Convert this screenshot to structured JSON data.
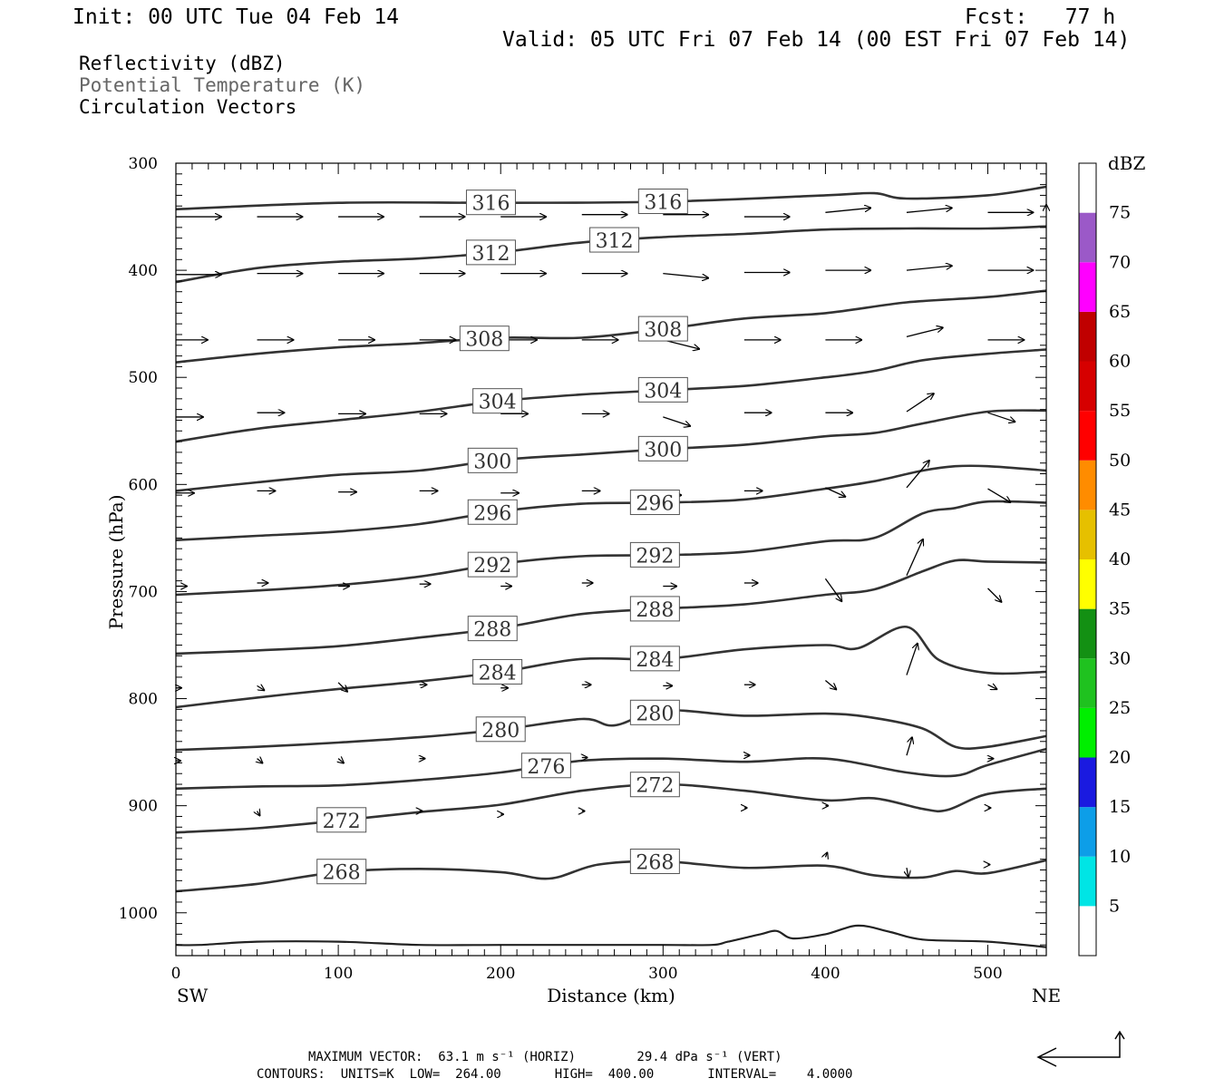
{
  "header": {
    "init": "Init: 00 UTC Tue 04 Feb 14",
    "fcst": "Fcst:   77 h",
    "valid": "Valid: 05 UTC Fri 07 Feb 14 (00 EST Fri 07 Feb 14)"
  },
  "legend_lines": {
    "reflectivity": "Reflectivity (dBZ)",
    "theta": "Potential Temperature (K)",
    "vectors": "Circulation Vectors"
  },
  "footer": {
    "line1": "MAXIMUM VECTOR:  63.1 m s⁻¹ (HORIZ)        29.4 dPa s⁻¹ (VERT)",
    "line2": "CONTOURS:  UNITS=K  LOW=  264.00       HIGH=  400.00       INTERVAL=    4.0000"
  },
  "chart_data": {
    "type": "line",
    "xlabel": "Distance (km)",
    "ylabel": "Pressure (hPa)",
    "xlim": [
      0,
      536
    ],
    "ylim": [
      1040,
      300
    ],
    "x_ticks": [
      0,
      100,
      200,
      300,
      400,
      500
    ],
    "y_ticks": [
      300,
      400,
      500,
      600,
      700,
      800,
      900,
      1000
    ],
    "x_end_labels": {
      "left": "SW",
      "right": "NE"
    },
    "contour_units": "K",
    "colorbar": {
      "title": "dBZ",
      "levels": [
        5,
        10,
        15,
        20,
        25,
        30,
        35,
        40,
        45,
        50,
        55,
        60,
        65,
        70,
        75
      ],
      "colors": [
        "#ffffff",
        "#00e5e5",
        "#0d9ee8",
        "#1a1ae0",
        "#00ef00",
        "#1fc21f",
        "#139013",
        "#ffff00",
        "#e6c000",
        "#ff8c00",
        "#ff0000",
        "#d60000",
        "#c00000",
        "#ff00ff",
        "#9b59c8",
        "#ffffff"
      ]
    },
    "isentropes": [
      {
        "theta": 316,
        "x": [
          0,
          100,
          200,
          300,
          400,
          430,
          450,
          500,
          536
        ],
        "p": [
          343,
          337,
          337,
          336,
          330,
          328,
          333,
          330,
          322
        ]
      },
      {
        "theta": 312,
        "x": [
          0,
          50,
          100,
          150,
          200,
          250,
          300,
          350,
          400,
          450,
          500,
          536
        ],
        "p": [
          411,
          398,
          392,
          389,
          383,
          374,
          369,
          366,
          362,
          361,
          361,
          359
        ]
      },
      {
        "theta": 308,
        "x": [
          0,
          50,
          100,
          150,
          200,
          250,
          300,
          350,
          400,
          450,
          500,
          536
        ],
        "p": [
          486,
          478,
          472,
          468,
          463,
          463,
          455,
          445,
          440,
          430,
          425,
          419
        ]
      },
      {
        "theta": 304,
        "x": [
          0,
          50,
          100,
          150,
          200,
          250,
          300,
          350,
          400,
          430,
          460,
          500,
          536
        ],
        "p": [
          560,
          548,
          540,
          532,
          522,
          516,
          512,
          508,
          500,
          494,
          484,
          478,
          474
        ]
      },
      {
        "theta": 300,
        "x": [
          0,
          50,
          100,
          150,
          200,
          250,
          300,
          350,
          400,
          430,
          460,
          500,
          536
        ],
        "p": [
          606,
          598,
          591,
          587,
          577,
          572,
          567,
          563,
          555,
          552,
          543,
          532,
          531
        ]
      },
      {
        "theta": 296,
        "x": [
          0,
          50,
          100,
          150,
          200,
          250,
          300,
          350,
          400,
          430,
          460,
          480,
          500,
          536
        ],
        "p": [
          652,
          648,
          644,
          637,
          625,
          618,
          617,
          614,
          604,
          597,
          587,
          583,
          583,
          587
        ]
      },
      {
        "theta": 292,
        "x": [
          0,
          50,
          100,
          150,
          200,
          250,
          300,
          350,
          400,
          430,
          460,
          480,
          500,
          536
        ],
        "p": [
          703,
          699,
          694,
          686,
          674,
          667,
          666,
          663,
          653,
          650,
          627,
          622,
          616,
          617
        ]
      },
      {
        "theta": 288,
        "x": [
          0,
          50,
          100,
          150,
          200,
          250,
          300,
          350,
          400,
          430,
          460,
          480,
          500,
          536
        ],
        "p": [
          758,
          755,
          751,
          743,
          734,
          721,
          716,
          712,
          703,
          698,
          681,
          671,
          672,
          673
        ]
      },
      {
        "theta": 284,
        "x": [
          0,
          50,
          100,
          150,
          200,
          250,
          300,
          350,
          400,
          420,
          450,
          470,
          500,
          536
        ],
        "p": [
          808,
          799,
          791,
          784,
          775,
          763,
          763,
          754,
          750,
          753,
          733,
          764,
          776,
          775
        ]
      },
      {
        "theta": 280,
        "x": [
          0,
          50,
          100,
          150,
          200,
          250,
          270,
          300,
          350,
          400,
          430,
          460,
          480,
          500,
          536
        ],
        "p": [
          848,
          845,
          841,
          836,
          829,
          819,
          825,
          811,
          816,
          814,
          818,
          828,
          845,
          845,
          835
        ]
      },
      {
        "theta": 276,
        "x": [
          0,
          50,
          100,
          150,
          200,
          250,
          300,
          350,
          400,
          450,
          480,
          500,
          536
        ],
        "p": [
          884,
          882,
          881,
          876,
          869,
          858,
          856,
          859,
          856,
          869,
          872,
          862,
          847
        ]
      },
      {
        "theta": 272,
        "x": [
          0,
          50,
          100,
          150,
          200,
          250,
          300,
          350,
          400,
          430,
          460,
          475,
          500,
          536
        ],
        "p": [
          925,
          921,
          914,
          906,
          899,
          886,
          880,
          886,
          895,
          893,
          903,
          904,
          889,
          884
        ]
      },
      {
        "theta": 268,
        "x": [
          0,
          50,
          100,
          150,
          200,
          230,
          260,
          300,
          350,
          400,
          430,
          460,
          480,
          500,
          536
        ],
        "p": [
          980,
          973,
          962,
          959,
          962,
          968,
          955,
          952,
          958,
          956,
          965,
          967,
          961,
          963,
          951
        ]
      }
    ],
    "surface": {
      "x": [
        0,
        15,
        50,
        100,
        150,
        200,
        250,
        300,
        330,
        340,
        360,
        370,
        380,
        400,
        420,
        440,
        460,
        500,
        536
      ],
      "p": [
        1030,
        1030,
        1027,
        1027,
        1030,
        1030,
        1030,
        1030,
        1030,
        1027,
        1020,
        1017,
        1024,
        1020,
        1012,
        1018,
        1025,
        1027,
        1032
      ]
    },
    "vectors_note": "circulation vectors (u, w) sampled on a grid; values in approximate m s⁻¹ equivalent",
    "vectors": [
      {
        "x": 0,
        "p": 350,
        "u": 50,
        "w": 0
      },
      {
        "x": 50,
        "p": 350,
        "u": 50,
        "w": 0
      },
      {
        "x": 100,
        "p": 350,
        "u": 50,
        "w": 0
      },
      {
        "x": 150,
        "p": 350,
        "u": 50,
        "w": 0
      },
      {
        "x": 200,
        "p": 350,
        "u": 50,
        "w": 0
      },
      {
        "x": 250,
        "p": 348,
        "u": 50,
        "w": 0
      },
      {
        "x": 300,
        "p": 348,
        "u": 50,
        "w": 0
      },
      {
        "x": 350,
        "p": 350,
        "u": 50,
        "w": 0
      },
      {
        "x": 400,
        "p": 346,
        "u": 50,
        "w": 1
      },
      {
        "x": 450,
        "p": 346,
        "u": 50,
        "w": 1
      },
      {
        "x": 500,
        "p": 346,
        "u": 50,
        "w": 0
      },
      {
        "x": 536,
        "p": 343,
        "u": 50,
        "w": 1
      },
      {
        "x": 0,
        "p": 404,
        "u": 50,
        "w": 0
      },
      {
        "x": 50,
        "p": 403,
        "u": 50,
        "w": 0
      },
      {
        "x": 100,
        "p": 403,
        "u": 50,
        "w": 0
      },
      {
        "x": 150,
        "p": 403,
        "u": 50,
        "w": 0
      },
      {
        "x": 200,
        "p": 403,
        "u": 50,
        "w": 0
      },
      {
        "x": 250,
        "p": 403,
        "u": 50,
        "w": 0
      },
      {
        "x": 300,
        "p": 403,
        "u": 50,
        "w": -1
      },
      {
        "x": 350,
        "p": 402,
        "u": 50,
        "w": 0
      },
      {
        "x": 400,
        "p": 400,
        "u": 50,
        "w": 0
      },
      {
        "x": 450,
        "p": 400,
        "u": 50,
        "w": 1
      },
      {
        "x": 500,
        "p": 400,
        "u": 50,
        "w": 0
      },
      {
        "x": 0,
        "p": 465,
        "u": 35,
        "w": 0
      },
      {
        "x": 50,
        "p": 465,
        "u": 40,
        "w": 0
      },
      {
        "x": 100,
        "p": 465,
        "u": 40,
        "w": 0
      },
      {
        "x": 150,
        "p": 465,
        "u": 40,
        "w": 0
      },
      {
        "x": 200,
        "p": 465,
        "u": 40,
        "w": 0
      },
      {
        "x": 250,
        "p": 465,
        "u": 40,
        "w": 0
      },
      {
        "x": 300,
        "p": 465,
        "u": 40,
        "w": -2
      },
      {
        "x": 350,
        "p": 465,
        "u": 40,
        "w": 0
      },
      {
        "x": 400,
        "p": 465,
        "u": 40,
        "w": 0
      },
      {
        "x": 450,
        "p": 462,
        "u": 40,
        "w": 2
      },
      {
        "x": 500,
        "p": 465,
        "u": 40,
        "w": 0
      },
      {
        "x": 0,
        "p": 537,
        "u": 30,
        "w": 0
      },
      {
        "x": 50,
        "p": 533,
        "u": 30,
        "w": 0
      },
      {
        "x": 100,
        "p": 534,
        "u": 30,
        "w": 0
      },
      {
        "x": 150,
        "p": 534,
        "u": 30,
        "w": 0
      },
      {
        "x": 200,
        "p": 534,
        "u": 30,
        "w": 0
      },
      {
        "x": 250,
        "p": 534,
        "u": 30,
        "w": 0
      },
      {
        "x": 300,
        "p": 537,
        "u": 30,
        "w": -2
      },
      {
        "x": 350,
        "p": 533,
        "u": 30,
        "w": 0
      },
      {
        "x": 400,
        "p": 533,
        "u": 30,
        "w": 0
      },
      {
        "x": 450,
        "p": 532,
        "u": 30,
        "w": 4
      },
      {
        "x": 500,
        "p": 533,
        "u": 30,
        "w": -2
      },
      {
        "x": 0,
        "p": 608,
        "u": 20,
        "w": 0
      },
      {
        "x": 50,
        "p": 606,
        "u": 20,
        "w": 0
      },
      {
        "x": 100,
        "p": 607,
        "u": 20,
        "w": 0
      },
      {
        "x": 150,
        "p": 606,
        "u": 20,
        "w": 0
      },
      {
        "x": 200,
        "p": 608,
        "u": 20,
        "w": 0
      },
      {
        "x": 250,
        "p": 606,
        "u": 20,
        "w": 0
      },
      {
        "x": 300,
        "p": 610,
        "u": 20,
        "w": 0
      },
      {
        "x": 350,
        "p": 606,
        "u": 20,
        "w": 0
      },
      {
        "x": 400,
        "p": 603,
        "u": 22,
        "w": -2
      },
      {
        "x": 450,
        "p": 603,
        "u": 25,
        "w": 6
      },
      {
        "x": 500,
        "p": 604,
        "u": 25,
        "w": -3
      },
      {
        "x": 0,
        "p": 695,
        "u": 12,
        "w": 0
      },
      {
        "x": 50,
        "p": 692,
        "u": 12,
        "w": 0
      },
      {
        "x": 100,
        "p": 695,
        "u": 12,
        "w": 0
      },
      {
        "x": 150,
        "p": 693,
        "u": 12,
        "w": 0
      },
      {
        "x": 200,
        "p": 695,
        "u": 12,
        "w": 0
      },
      {
        "x": 250,
        "p": 692,
        "u": 12,
        "w": 0
      },
      {
        "x": 300,
        "p": 695,
        "u": 15,
        "w": 0
      },
      {
        "x": 350,
        "p": 692,
        "u": 15,
        "w": 0
      },
      {
        "x": 400,
        "p": 688,
        "u": 18,
        "w": -5
      },
      {
        "x": 450,
        "p": 685,
        "u": 18,
        "w": 8
      },
      {
        "x": 500,
        "p": 697,
        "u": 15,
        "w": -3
      },
      {
        "x": 0,
        "p": 790,
        "u": 6,
        "w": 0
      },
      {
        "x": 50,
        "p": 788,
        "u": 8,
        "w": -1
      },
      {
        "x": 100,
        "p": 785,
        "u": 10,
        "w": -2
      },
      {
        "x": 150,
        "p": 787,
        "u": 8,
        "w": 0
      },
      {
        "x": 200,
        "p": 790,
        "u": 8,
        "w": 0
      },
      {
        "x": 250,
        "p": 787,
        "u": 10,
        "w": 0
      },
      {
        "x": 300,
        "p": 788,
        "u": 10,
        "w": 0
      },
      {
        "x": 350,
        "p": 787,
        "u": 12,
        "w": 0
      },
      {
        "x": 400,
        "p": 783,
        "u": 12,
        "w": -2
      },
      {
        "x": 450,
        "p": 778,
        "u": 12,
        "w": 7
      },
      {
        "x": 500,
        "p": 787,
        "u": 10,
        "w": -1
      },
      {
        "x": 0,
        "p": 858,
        "u": 5,
        "w": 0
      },
      {
        "x": 50,
        "p": 856,
        "u": 6,
        "w": -1
      },
      {
        "x": 100,
        "p": 856,
        "u": 6,
        "w": -1
      },
      {
        "x": 150,
        "p": 856,
        "u": 6,
        "w": 0
      },
      {
        "x": 250,
        "p": 855,
        "u": 6,
        "w": 0
      },
      {
        "x": 350,
        "p": 853,
        "u": 6,
        "w": 0
      },
      {
        "x": 450,
        "p": 853,
        "u": 6,
        "w": 4
      },
      {
        "x": 500,
        "p": 856,
        "u": 6,
        "w": 0
      },
      {
        "x": 50,
        "p": 905,
        "u": 3,
        "w": -1
      },
      {
        "x": 100,
        "p": 905,
        "u": 3,
        "w": 0
      },
      {
        "x": 150,
        "p": 905,
        "u": 3,
        "w": 0
      },
      {
        "x": 200,
        "p": 908,
        "u": 3,
        "w": 0
      },
      {
        "x": 250,
        "p": 905,
        "u": 3,
        "w": 0
      },
      {
        "x": 350,
        "p": 902,
        "u": 3,
        "w": 0
      },
      {
        "x": 400,
        "p": 900,
        "u": 3,
        "w": 0
      },
      {
        "x": 500,
        "p": 902,
        "u": 3,
        "w": 0
      },
      {
        "x": 400,
        "p": 948,
        "u": 2,
        "w": 1
      },
      {
        "x": 450,
        "p": 958,
        "u": 2,
        "w": -2
      },
      {
        "x": 500,
        "p": 955,
        "u": 2,
        "w": 0
      }
    ]
  },
  "arrow_ref": {
    "label": "reference vector"
  }
}
